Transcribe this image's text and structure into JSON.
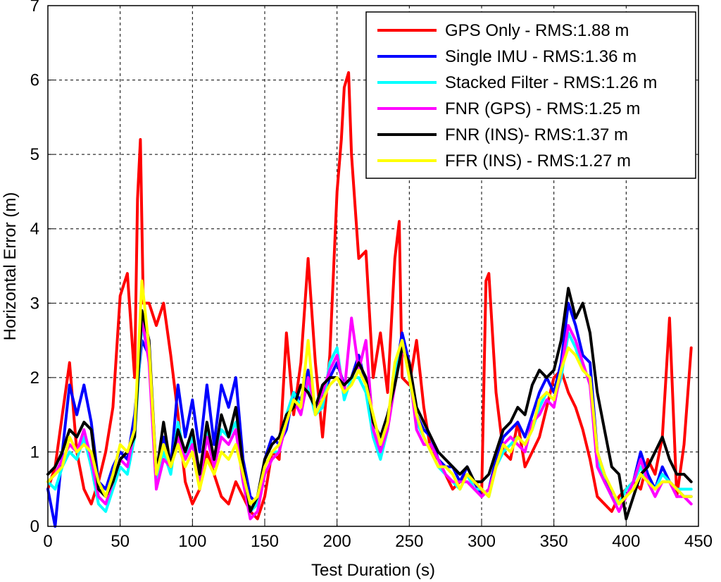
{
  "chart_data": {
    "type": "line",
    "title": "",
    "xlabel": "Test Duration (s)",
    "ylabel": "Horizontal Error (m)",
    "xlim": [
      0,
      450
    ],
    "ylim": [
      0,
      7
    ],
    "xticks": [
      0,
      50,
      100,
      150,
      200,
      250,
      300,
      350,
      400,
      450
    ],
    "yticks": [
      0,
      1,
      2,
      3,
      4,
      5,
      6,
      7
    ],
    "grid": true,
    "legend_position": "top-right",
    "series": [
      {
        "name": "GPS Only - RMS:1.88 m",
        "color": "#ff0000",
        "x": [
          0,
          5,
          10,
          15,
          20,
          25,
          30,
          35,
          40,
          45,
          50,
          55,
          60,
          62,
          64,
          66,
          70,
          75,
          80,
          85,
          90,
          95,
          100,
          105,
          110,
          115,
          120,
          125,
          130,
          135,
          140,
          145,
          150,
          155,
          160,
          165,
          170,
          175,
          180,
          185,
          190,
          195,
          200,
          203,
          205,
          208,
          210,
          215,
          220,
          225,
          230,
          235,
          240,
          243,
          245,
          250,
          255,
          260,
          265,
          270,
          275,
          280,
          285,
          290,
          295,
          300,
          303,
          305,
          310,
          315,
          320,
          325,
          330,
          335,
          340,
          345,
          350,
          355,
          360,
          365,
          370,
          375,
          380,
          385,
          390,
          395,
          400,
          405,
          410,
          415,
          420,
          425,
          430,
          435,
          440,
          445
        ],
        "y": [
          0.5,
          0.8,
          1.5,
          2.2,
          1.0,
          0.5,
          0.3,
          0.6,
          1.0,
          1.6,
          3.1,
          3.4,
          2.0,
          4.4,
          5.2,
          3.0,
          3.0,
          2.7,
          3.0,
          2.3,
          1.5,
          0.6,
          0.3,
          0.5,
          1.0,
          0.7,
          0.4,
          0.3,
          0.6,
          0.4,
          0.2,
          0.1,
          0.4,
          1.0,
          0.9,
          2.6,
          1.5,
          2.2,
          3.6,
          2.2,
          1.2,
          2.3,
          4.5,
          5.2,
          5.9,
          6.1,
          5.0,
          3.6,
          3.7,
          2.0,
          2.6,
          1.8,
          3.6,
          4.1,
          2.0,
          1.9,
          2.5,
          1.6,
          1.0,
          0.9,
          0.7,
          0.5,
          0.6,
          0.7,
          0.6,
          0.4,
          3.3,
          3.4,
          1.8,
          1.0,
          0.9,
          1.4,
          0.8,
          1.0,
          1.2,
          1.6,
          2.0,
          2.1,
          1.8,
          1.6,
          1.3,
          0.9,
          0.4,
          0.3,
          0.2,
          0.4,
          0.5,
          0.6,
          0.5,
          0.9,
          0.7,
          1.2,
          2.8,
          0.4,
          1.1,
          2.4
        ]
      },
      {
        "name": "Single IMU - RMS:1.36 m",
        "color": "#0000ff",
        "x": [
          0,
          5,
          10,
          15,
          20,
          25,
          30,
          35,
          40,
          45,
          50,
          55,
          60,
          65,
          70,
          75,
          80,
          85,
          90,
          95,
          100,
          105,
          110,
          115,
          120,
          125,
          130,
          135,
          140,
          145,
          150,
          155,
          160,
          165,
          170,
          175,
          180,
          185,
          190,
          195,
          200,
          205,
          210,
          215,
          220,
          225,
          230,
          235,
          240,
          245,
          250,
          255,
          260,
          265,
          270,
          275,
          280,
          285,
          290,
          295,
          300,
          305,
          310,
          315,
          320,
          325,
          330,
          335,
          340,
          345,
          350,
          355,
          360,
          365,
          370,
          375,
          380,
          385,
          390,
          395,
          400,
          405,
          410,
          415,
          420,
          425,
          430,
          435,
          440,
          445
        ],
        "y": [
          0.5,
          0.0,
          1.0,
          1.9,
          1.5,
          1.9,
          1.4,
          0.6,
          0.5,
          0.8,
          1.0,
          0.9,
          1.5,
          2.5,
          2.3,
          0.6,
          1.2,
          0.8,
          1.9,
          1.2,
          1.7,
          1.0,
          1.9,
          1.1,
          1.9,
          1.6,
          2.0,
          0.9,
          0.4,
          0.3,
          0.9,
          1.2,
          1.1,
          1.3,
          1.8,
          1.7,
          2.1,
          1.5,
          1.7,
          2.0,
          2.2,
          1.9,
          2.0,
          2.3,
          1.9,
          1.3,
          1.0,
          1.4,
          2.0,
          2.6,
          2.2,
          1.5,
          1.3,
          1.2,
          0.9,
          0.8,
          0.8,
          0.6,
          0.8,
          0.6,
          0.4,
          0.5,
          0.9,
          1.2,
          1.3,
          1.4,
          1.2,
          1.5,
          1.8,
          2.0,
          1.8,
          2.2,
          3.0,
          2.7,
          2.3,
          2.2,
          1.0,
          0.7,
          0.4,
          0.3,
          0.4,
          0.6,
          1.0,
          0.7,
          0.5,
          0.8,
          0.6,
          0.5,
          0.4,
          0.4
        ]
      },
      {
        "name": "Stacked Filter - RMS:1.26 m",
        "color": "#00ffff",
        "x": [
          0,
          5,
          10,
          15,
          20,
          25,
          30,
          35,
          40,
          45,
          50,
          55,
          60,
          65,
          70,
          75,
          80,
          85,
          90,
          95,
          100,
          105,
          110,
          115,
          120,
          125,
          130,
          135,
          140,
          145,
          150,
          155,
          160,
          165,
          170,
          175,
          180,
          185,
          190,
          195,
          200,
          205,
          210,
          215,
          220,
          225,
          230,
          235,
          240,
          245,
          250,
          255,
          260,
          265,
          270,
          275,
          280,
          285,
          290,
          295,
          300,
          305,
          310,
          315,
          320,
          325,
          330,
          335,
          340,
          345,
          350,
          355,
          360,
          365,
          370,
          375,
          380,
          385,
          390,
          395,
          400,
          405,
          410,
          415,
          420,
          425,
          430,
          435,
          440,
          445
        ],
        "y": [
          0.6,
          0.5,
          0.8,
          1.0,
          0.9,
          1.2,
          0.8,
          0.3,
          0.2,
          0.5,
          0.8,
          0.7,
          1.2,
          2.7,
          2.3,
          0.6,
          1.0,
          0.7,
          1.4,
          0.9,
          1.2,
          0.7,
          1.3,
          0.9,
          1.3,
          1.2,
          1.4,
          0.7,
          0.2,
          0.3,
          0.8,
          1.0,
          1.0,
          1.5,
          1.8,
          1.6,
          1.9,
          1.5,
          1.6,
          2.2,
          2.4,
          1.7,
          2.0,
          2.0,
          1.8,
          1.2,
          0.9,
          1.3,
          2.0,
          2.5,
          2.0,
          1.4,
          1.2,
          1.0,
          0.8,
          0.7,
          0.6,
          0.5,
          0.7,
          0.5,
          0.5,
          0.4,
          0.8,
          1.0,
          1.1,
          1.2,
          1.1,
          1.3,
          1.6,
          1.8,
          1.7,
          2.0,
          2.6,
          2.4,
          2.1,
          2.0,
          0.9,
          0.6,
          0.4,
          0.3,
          0.5,
          0.6,
          0.8,
          0.6,
          0.5,
          0.7,
          0.6,
          0.5,
          0.5,
          0.5
        ]
      },
      {
        "name": "FNR (GPS) - RMS:1.25 m",
        "color": "#ff00ff",
        "x": [
          0,
          5,
          10,
          15,
          20,
          25,
          30,
          35,
          40,
          45,
          50,
          55,
          60,
          65,
          70,
          75,
          80,
          85,
          90,
          95,
          100,
          105,
          110,
          115,
          120,
          125,
          130,
          135,
          140,
          145,
          150,
          155,
          160,
          165,
          170,
          175,
          180,
          185,
          190,
          195,
          200,
          205,
          210,
          215,
          220,
          225,
          230,
          235,
          240,
          245,
          250,
          255,
          260,
          265,
          270,
          275,
          280,
          285,
          290,
          295,
          300,
          305,
          310,
          315,
          320,
          325,
          330,
          335,
          340,
          345,
          350,
          355,
          360,
          365,
          370,
          375,
          380,
          385,
          390,
          395,
          400,
          405,
          410,
          415,
          420,
          425,
          430,
          435,
          440,
          445
        ],
        "y": [
          0.6,
          0.7,
          0.9,
          1.1,
          1.0,
          1.3,
          0.9,
          0.4,
          0.3,
          0.6,
          0.9,
          0.8,
          1.3,
          2.8,
          2.2,
          0.5,
          0.9,
          0.8,
          1.2,
          0.9,
          1.1,
          0.6,
          1.2,
          0.8,
          1.2,
          1.1,
          1.3,
          0.6,
          0.1,
          0.2,
          0.7,
          0.9,
          1.0,
          1.4,
          1.7,
          1.5,
          2.0,
          1.6,
          1.8,
          2.1,
          2.3,
          1.8,
          2.8,
          2.1,
          2.5,
          1.3,
          1.0,
          1.3,
          1.9,
          2.4,
          2.1,
          1.3,
          1.1,
          1.1,
          0.9,
          0.7,
          0.6,
          0.6,
          0.6,
          0.5,
          0.4,
          0.5,
          0.8,
          1.1,
          1.2,
          1.1,
          1.0,
          1.4,
          1.5,
          1.7,
          1.6,
          2.1,
          2.7,
          2.5,
          2.2,
          1.9,
          0.8,
          0.6,
          0.4,
          0.2,
          0.4,
          0.6,
          0.9,
          0.6,
          0.4,
          0.6,
          0.6,
          0.4,
          0.4,
          0.3
        ]
      },
      {
        "name": "FNR (INS)- RMS:1.37 m",
        "color": "#000000",
        "x": [
          0,
          5,
          10,
          15,
          20,
          25,
          30,
          35,
          40,
          45,
          50,
          55,
          60,
          65,
          70,
          75,
          80,
          85,
          90,
          95,
          100,
          105,
          110,
          115,
          120,
          125,
          130,
          135,
          140,
          145,
          150,
          155,
          160,
          165,
          170,
          175,
          180,
          185,
          190,
          195,
          200,
          205,
          210,
          215,
          220,
          225,
          230,
          235,
          240,
          245,
          250,
          255,
          260,
          265,
          270,
          275,
          280,
          285,
          290,
          295,
          300,
          305,
          310,
          315,
          320,
          325,
          330,
          335,
          340,
          345,
          350,
          355,
          360,
          365,
          370,
          375,
          380,
          385,
          390,
          395,
          400,
          405,
          410,
          415,
          420,
          425,
          430,
          435,
          440,
          445
        ],
        "y": [
          0.7,
          0.8,
          1.0,
          1.3,
          1.2,
          1.4,
          1.3,
          0.5,
          0.4,
          0.6,
          0.9,
          1.0,
          1.2,
          2.9,
          2.5,
          0.7,
          1.4,
          0.8,
          1.3,
          1.0,
          1.3,
          0.7,
          1.4,
          0.9,
          1.5,
          1.2,
          1.6,
          0.8,
          0.2,
          0.4,
          0.9,
          1.1,
          1.2,
          1.5,
          1.6,
          1.9,
          1.8,
          1.6,
          1.9,
          2.0,
          2.0,
          1.9,
          2.0,
          2.2,
          2.0,
          1.4,
          1.2,
          1.5,
          1.9,
          2.4,
          2.2,
          1.6,
          1.4,
          1.2,
          1.0,
          0.9,
          0.8,
          0.7,
          0.8,
          0.6,
          0.6,
          0.7,
          1.0,
          1.3,
          1.4,
          1.6,
          1.5,
          1.9,
          2.1,
          2.0,
          2.1,
          2.5,
          3.2,
          2.8,
          3.0,
          2.6,
          1.8,
          1.3,
          0.8,
          0.7,
          0.1,
          0.4,
          0.7,
          0.8,
          1.0,
          1.2,
          0.9,
          0.7,
          0.7,
          0.6
        ]
      },
      {
        "name": "FFR (INS) - RMS:1.27 m",
        "color": "#ffff00",
        "x": [
          0,
          5,
          10,
          15,
          20,
          25,
          30,
          35,
          40,
          45,
          50,
          55,
          60,
          65,
          70,
          75,
          80,
          85,
          90,
          95,
          100,
          105,
          110,
          115,
          120,
          125,
          130,
          135,
          140,
          145,
          150,
          155,
          160,
          165,
          170,
          175,
          180,
          185,
          190,
          195,
          200,
          205,
          210,
          215,
          220,
          225,
          230,
          235,
          240,
          245,
          250,
          255,
          260,
          265,
          270,
          275,
          280,
          285,
          290,
          295,
          300,
          305,
          310,
          315,
          320,
          325,
          330,
          335,
          340,
          345,
          350,
          355,
          360,
          365,
          370,
          375,
          380,
          385,
          390,
          395,
          400,
          405,
          410,
          415,
          420,
          425,
          430,
          435,
          440,
          445
        ],
        "y": [
          0.6,
          0.7,
          0.8,
          1.2,
          1.0,
          1.1,
          1.0,
          0.6,
          0.4,
          0.7,
          1.1,
          1.0,
          1.3,
          3.3,
          2.4,
          0.7,
          1.1,
          0.8,
          1.1,
          0.8,
          1.0,
          0.5,
          0.9,
          0.7,
          1.0,
          0.9,
          1.1,
          0.7,
          0.3,
          0.4,
          0.8,
          1.0,
          1.1,
          1.4,
          1.7,
          1.6,
          2.5,
          1.5,
          1.7,
          1.9,
          2.0,
          1.8,
          1.9,
          2.1,
          1.9,
          1.5,
          1.1,
          1.4,
          2.2,
          2.5,
          2.0,
          1.5,
          1.2,
          1.0,
          0.8,
          0.8,
          0.7,
          0.5,
          0.7,
          0.6,
          0.5,
          0.4,
          0.8,
          1.1,
          1.0,
          1.2,
          1.1,
          1.3,
          1.7,
          1.8,
          1.7,
          2.1,
          2.4,
          2.3,
          2.1,
          2.0,
          1.0,
          0.7,
          0.5,
          0.3,
          0.4,
          0.5,
          0.7,
          0.6,
          0.5,
          0.6,
          0.6,
          0.5,
          0.4,
          0.4
        ]
      }
    ]
  }
}
